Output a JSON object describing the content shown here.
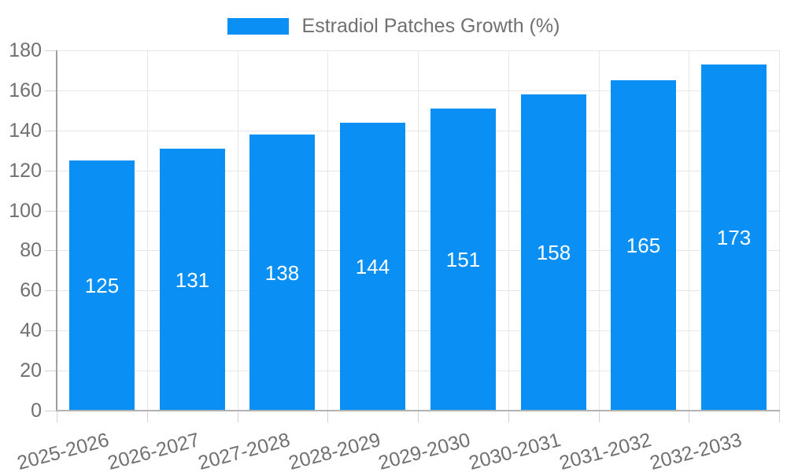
{
  "chart_data": {
    "type": "bar",
    "title": "",
    "series_name": "Estradiol Patches Growth (%)",
    "categories": [
      "2025-2026",
      "2026-2027",
      "2027-2028",
      "2028-2029",
      "2029-2030",
      "2030-2031",
      "2031-2032",
      "2032-2033"
    ],
    "values": [
      125,
      131,
      138,
      144,
      151,
      158,
      165,
      173
    ],
    "xlabel": "",
    "ylabel": "",
    "ylim": [
      0,
      180
    ],
    "yticks": [
      0,
      20,
      40,
      60,
      80,
      100,
      120,
      140,
      160,
      180
    ],
    "grid": true,
    "legend_position": "top-center",
    "bar_color": "#0a90f5",
    "value_label_color": "#ffffff",
    "axis_text_color": "#707070",
    "gridline_color": "#e6e6e6",
    "x_label_rotation_deg": -15
  }
}
